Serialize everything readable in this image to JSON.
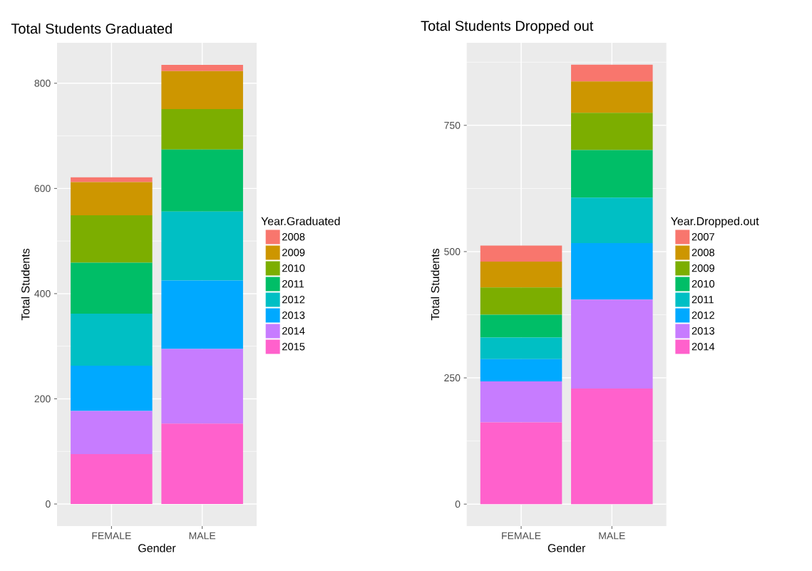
{
  "chart_data": [
    {
      "type": "bar",
      "stacked": true,
      "title": "Total Students Graduated",
      "xlabel": "Gender",
      "ylabel": "Total Students",
      "legend_title": "Year.Graduated",
      "categories": [
        "FEMALE",
        "MALE"
      ],
      "series": [
        {
          "name": "2015",
          "color": "#FF61CC",
          "values": [
            95,
            153
          ]
        },
        {
          "name": "2014",
          "color": "#C77CFF",
          "values": [
            82,
            142
          ]
        },
        {
          "name": "2013",
          "color": "#00A9FF",
          "values": [
            86,
            130
          ]
        },
        {
          "name": "2012",
          "color": "#00BFC4",
          "values": [
            99,
            131
          ]
        },
        {
          "name": "2011",
          "color": "#00BE67",
          "values": [
            97,
            118
          ]
        },
        {
          "name": "2010",
          "color": "#7CAE00",
          "values": [
            90,
            77
          ]
        },
        {
          "name": "2009",
          "color": "#CD9600",
          "values": [
            63,
            72
          ]
        },
        {
          "name": "2008",
          "color": "#F8766D",
          "values": [
            9,
            12
          ]
        }
      ],
      "ylim": [
        -42,
        877
      ],
      "yticks": [
        0,
        200,
        400,
        600,
        800
      ],
      "grid": true,
      "legend": "right"
    },
    {
      "type": "bar",
      "stacked": true,
      "title": "Total Students Dropped out",
      "xlabel": "Gender",
      "ylabel": "Total Students",
      "legend_title": "Year.Dropped.out",
      "categories": [
        "FEMALE",
        "MALE"
      ],
      "series": [
        {
          "name": "2014",
          "color": "#FF61CC",
          "values": [
            162,
            229
          ]
        },
        {
          "name": "2013",
          "color": "#C77CFF",
          "values": [
            81,
            176
          ]
        },
        {
          "name": "2012",
          "color": "#00A9FF",
          "values": [
            44,
            112
          ]
        },
        {
          "name": "2011",
          "color": "#00BFC4",
          "values": [
            43,
            90
          ]
        },
        {
          "name": "2010",
          "color": "#00BE67",
          "values": [
            45,
            94
          ]
        },
        {
          "name": "2009",
          "color": "#7CAE00",
          "values": [
            54,
            74
          ]
        },
        {
          "name": "2008",
          "color": "#CD9600",
          "values": [
            51,
            62
          ]
        },
        {
          "name": "2007",
          "color": "#F8766D",
          "values": [
            32,
            33
          ]
        }
      ],
      "ylim": [
        -43.5,
        913.5
      ],
      "yticks": [
        0,
        250,
        500,
        750
      ],
      "grid": true,
      "legend": "right"
    }
  ]
}
